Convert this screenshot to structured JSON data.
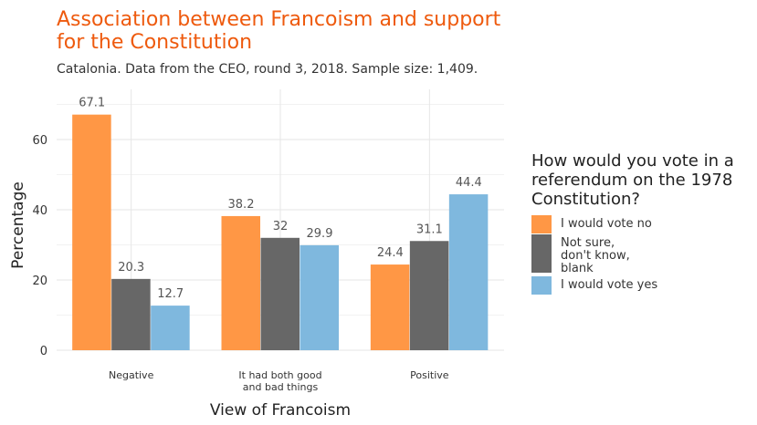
{
  "title": "Association between Francoism and support for the Constitution",
  "subtitle": "Catalonia. Data from the CEO, round 3, 2018. Sample size: 1,409.",
  "colors": {
    "title": "#ee5a0e",
    "grid": "#e6e6e6",
    "data_label": "#555555"
  },
  "legend": {
    "title": "How would you vote in a referendum on the 1978 Constitution?",
    "placement": "right"
  },
  "chart_data": {
    "type": "bar",
    "xlabel": "View of Francoism",
    "ylabel": "Percentage",
    "ylim": [
      0,
      72
    ],
    "yticks": [
      0,
      20,
      40,
      60
    ],
    "grid": true,
    "categories": [
      "Negative",
      "It had both good and bad things",
      "Positive"
    ],
    "series": [
      {
        "name": "I would vote no",
        "color": "#ff9745",
        "values": [
          67.1,
          38.2,
          24.4
        ]
      },
      {
        "name": "Not sure, don't know, blank",
        "color": "#676767",
        "values": [
          20.3,
          32,
          31.1
        ]
      },
      {
        "name": "I would vote yes",
        "color": "#7fb8de",
        "values": [
          12.7,
          29.9,
          44.4
        ]
      }
    ]
  }
}
